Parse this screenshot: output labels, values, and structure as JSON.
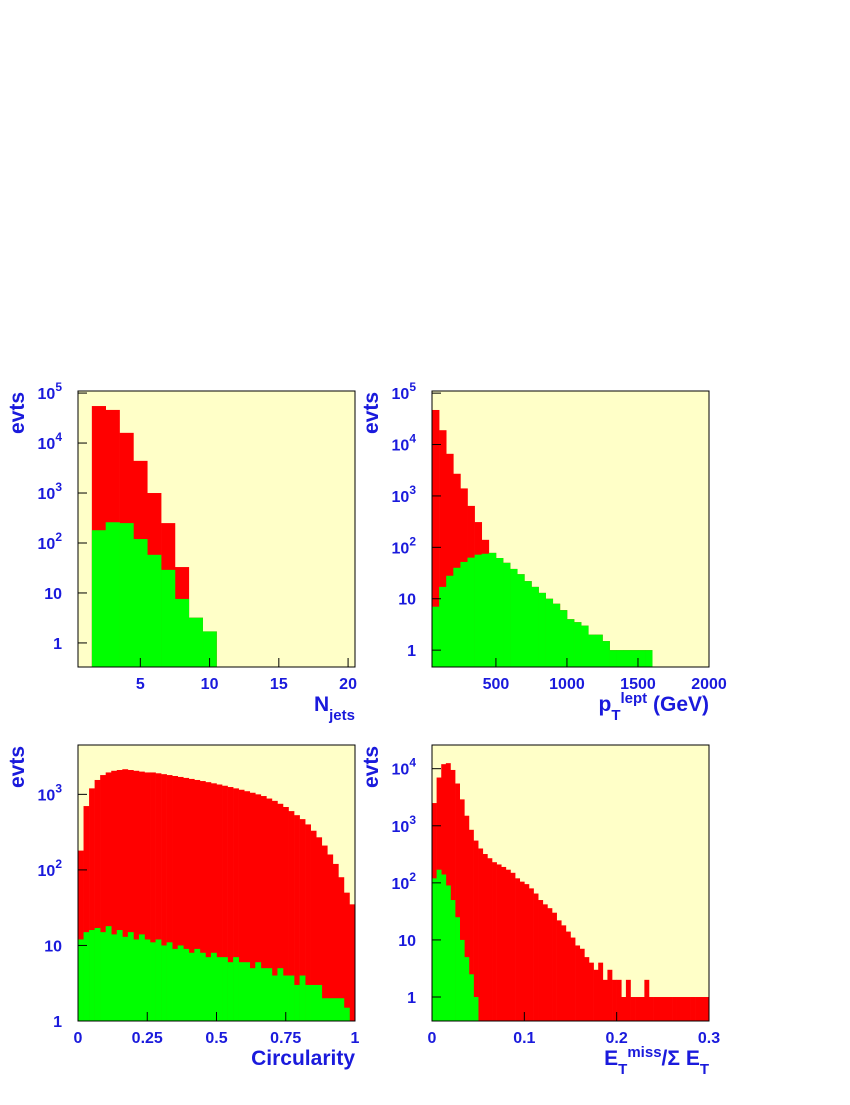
{
  "chart_data": [
    {
      "type": "histogram",
      "log_y": true,
      "background": "#ffffc8",
      "y_label": "evts",
      "x_label": [
        {
          "text": "N"
        },
        {
          "text": "jets",
          "shift": "sub"
        }
      ],
      "bins": [
        0.5,
        1.5,
        2.5,
        3.5,
        4.5,
        5.5,
        6.5,
        7.5,
        8.5,
        9.5,
        10.5,
        11.5,
        12.5,
        13.5,
        14.5,
        15.5,
        16.5,
        17.5,
        18.5,
        19.5,
        20.5
      ],
      "series": [
        {
          "color": "#ff0000",
          "values": [
            0,
            55000,
            46000,
            16000,
            4400,
            1000,
            250,
            33,
            3.2,
            1.7,
            0,
            0,
            0,
            0,
            0,
            0,
            0,
            0,
            0,
            0
          ]
        },
        {
          "color": "#00ff00",
          "values": [
            0,
            180,
            260,
            250,
            120,
            58,
            29,
            7.6,
            3.2,
            1.7,
            0,
            0,
            0,
            0,
            0,
            0,
            0,
            0,
            0,
            0
          ]
        }
      ],
      "xlim": [
        0.5,
        20.5
      ],
      "xticks": [
        5,
        10,
        15,
        20
      ],
      "ylim": [
        0.33,
        110000
      ],
      "yticks": [
        1,
        10,
        {
          "value": 100,
          "label": "10",
          "sup": "2"
        },
        {
          "value": 1000,
          "label": "10",
          "sup": "3"
        },
        {
          "value": 10000,
          "label": "10",
          "sup": "4"
        },
        {
          "value": 100000,
          "label": "10",
          "sup": "5"
        }
      ]
    },
    {
      "type": "histogram",
      "log_y": true,
      "background": "#ffffc8",
      "y_label": "evts",
      "x_label": [
        {
          "text": "p"
        },
        {
          "text": "T",
          "shift": "sub"
        },
        {
          "text": "lept",
          "shift": "super"
        },
        {
          "text": " (GeV)"
        }
      ],
      "bins": [
        50,
        100,
        150,
        200,
        250,
        300,
        350,
        400,
        450,
        500,
        550,
        600,
        650,
        700,
        750,
        800,
        850,
        900,
        950,
        1000,
        1050,
        1100,
        1150,
        1200,
        1250,
        1300,
        1350,
        1400,
        1450,
        1500,
        1550,
        1600,
        1650,
        1700,
        1750,
        1800,
        1850,
        1900,
        1950,
        2000
      ],
      "series": [
        {
          "color": "#ff0000",
          "values": [
            47000,
            19000,
            6600,
            2700,
            1400,
            640,
            310,
            140,
            78,
            62,
            50,
            38,
            30,
            22,
            17,
            13,
            10,
            8,
            6,
            4,
            3.5,
            3,
            2,
            2,
            1.5,
            1,
            1,
            1,
            1,
            1,
            1,
            0,
            0,
            0,
            0,
            0,
            0,
            0,
            0
          ]
        },
        {
          "color": "#00ff00",
          "values": [
            7,
            17,
            28,
            40,
            52,
            63,
            72,
            75,
            78,
            62,
            50,
            38,
            30,
            22,
            17,
            13,
            10,
            8,
            6,
            4,
            3.5,
            3,
            2,
            2,
            1.5,
            1,
            1,
            1,
            1,
            1,
            1,
            0,
            0,
            0,
            0,
            0,
            0,
            0,
            0
          ]
        }
      ],
      "xlim": [
        50,
        2000
      ],
      "xticks": [
        500,
        1000,
        1500,
        2000
      ],
      "ylim": [
        0.47,
        110000
      ],
      "yticks": [
        1,
        10,
        {
          "value": 100,
          "label": "10",
          "sup": "2"
        },
        {
          "value": 1000,
          "label": "10",
          "sup": "3"
        },
        {
          "value": 10000,
          "label": "10",
          "sup": "4"
        },
        {
          "value": 100000,
          "label": "10",
          "sup": "5"
        }
      ]
    },
    {
      "type": "histogram",
      "log_y": true,
      "background": "#ffffc8",
      "y_label": "evts",
      "x_label": [
        {
          "text": "Circularity"
        }
      ],
      "bins": [
        0,
        0.02,
        0.04,
        0.06,
        0.08,
        0.1,
        0.12,
        0.14,
        0.16,
        0.18,
        0.2,
        0.22,
        0.24,
        0.26,
        0.28,
        0.3,
        0.32,
        0.34,
        0.36,
        0.38,
        0.4,
        0.42,
        0.44,
        0.46,
        0.48,
        0.5,
        0.52,
        0.54,
        0.56,
        0.58,
        0.6,
        0.62,
        0.64,
        0.66,
        0.68,
        0.7,
        0.72,
        0.74,
        0.76,
        0.78,
        0.8,
        0.82,
        0.84,
        0.86,
        0.88,
        0.9,
        0.92,
        0.94,
        0.96,
        0.98,
        1
      ],
      "series": [
        {
          "color": "#ff0000",
          "values": [
            180,
            700,
            1200,
            1550,
            1800,
            1950,
            2050,
            2100,
            2150,
            2100,
            2050,
            2000,
            1950,
            1950,
            1900,
            1850,
            1800,
            1750,
            1700,
            1650,
            1600,
            1550,
            1500,
            1450,
            1400,
            1350,
            1300,
            1250,
            1200,
            1150,
            1100,
            1050,
            1000,
            950,
            880,
            820,
            750,
            680,
            600,
            530,
            470,
            400,
            330,
            270,
            210,
            160,
            120,
            80,
            50,
            35
          ]
        },
        {
          "color": "#00ff00",
          "values": [
            12,
            15,
            16,
            17,
            15,
            18,
            14,
            16,
            13,
            15,
            12,
            14,
            12,
            11,
            12,
            10,
            11,
            9,
            10,
            9,
            8,
            9,
            8,
            7,
            8,
            7,
            7,
            6,
            7,
            6,
            6,
            5,
            6,
            5,
            5,
            4,
            5,
            4,
            4,
            3,
            4,
            3,
            3,
            3,
            2,
            2,
            2,
            2,
            1.5,
            1
          ]
        }
      ],
      "xlim": [
        0,
        1
      ],
      "xticks": [
        0,
        0.25,
        0.5,
        0.75,
        1
      ],
      "ylim": [
        1,
        4500
      ],
      "yticks": [
        1,
        10,
        {
          "value": 100,
          "label": "10",
          "sup": "2"
        },
        {
          "value": 1000,
          "label": "10",
          "sup": "3"
        }
      ]
    },
    {
      "type": "histogram",
      "log_y": true,
      "background": "#ffffc8",
      "y_label": "evts",
      "x_label": [
        {
          "text": "E"
        },
        {
          "text": "T",
          "shift": "sub"
        },
        {
          "text": "miss",
          "shift": "super"
        },
        {
          "text": "/Σ E"
        },
        {
          "text": "T",
          "shift": "sub"
        }
      ],
      "bins": [
        0,
        0.005,
        0.01,
        0.015,
        0.02,
        0.025,
        0.03,
        0.035,
        0.04,
        0.045,
        0.05,
        0.055,
        0.06,
        0.065,
        0.07,
        0.075,
        0.08,
        0.085,
        0.09,
        0.095,
        0.1,
        0.105,
        0.11,
        0.115,
        0.12,
        0.125,
        0.13,
        0.135,
        0.14,
        0.145,
        0.15,
        0.155,
        0.16,
        0.165,
        0.17,
        0.175,
        0.18,
        0.185,
        0.19,
        0.195,
        0.2,
        0.205,
        0.21,
        0.215,
        0.22,
        0.225,
        0.23,
        0.235,
        0.24,
        0.245,
        0.25,
        0.255,
        0.26,
        0.265,
        0.27,
        0.275,
        0.28,
        0.285,
        0.29,
        0.295,
        0.3
      ],
      "series": [
        {
          "color": "#ff0000",
          "values": [
            2500,
            7000,
            12000,
            12500,
            9500,
            5500,
            2900,
            1500,
            850,
            550,
            400,
            320,
            270,
            230,
            210,
            190,
            170,
            150,
            120,
            105,
            95,
            80,
            65,
            50,
            42,
            36,
            30,
            22,
            18,
            14,
            11,
            8,
            7,
            5,
            4,
            3,
            4,
            2,
            3,
            2,
            2,
            1,
            2,
            1,
            1,
            1,
            2,
            1,
            1,
            1,
            1,
            1,
            1,
            1,
            1,
            1,
            1,
            1,
            1,
            1
          ]
        },
        {
          "color": "#00ff00",
          "values": [
            120,
            170,
            140,
            90,
            50,
            25,
            10,
            5,
            2.5,
            1,
            0,
            0,
            0,
            0,
            0,
            0,
            0,
            0,
            0,
            0,
            0,
            0,
            0,
            0,
            0,
            0,
            0,
            0,
            0,
            0,
            0,
            0,
            0,
            0,
            0,
            0,
            0,
            0,
            0,
            0,
            0,
            0,
            0,
            0,
            0,
            0,
            0,
            0,
            0,
            0,
            0,
            0,
            0,
            0,
            0,
            0,
            0,
            0,
            0,
            0
          ]
        }
      ],
      "xlim": [
        0,
        0.3
      ],
      "xticks": [
        0,
        0.1,
        0.2,
        0.3
      ],
      "ylim": [
        0.38,
        26000
      ],
      "yticks": [
        1,
        10,
        {
          "value": 100,
          "label": "10",
          "sup": "2"
        },
        {
          "value": 1000,
          "label": "10",
          "sup": "3"
        },
        {
          "value": 10000,
          "label": "10",
          "sup": "4"
        }
      ]
    }
  ]
}
